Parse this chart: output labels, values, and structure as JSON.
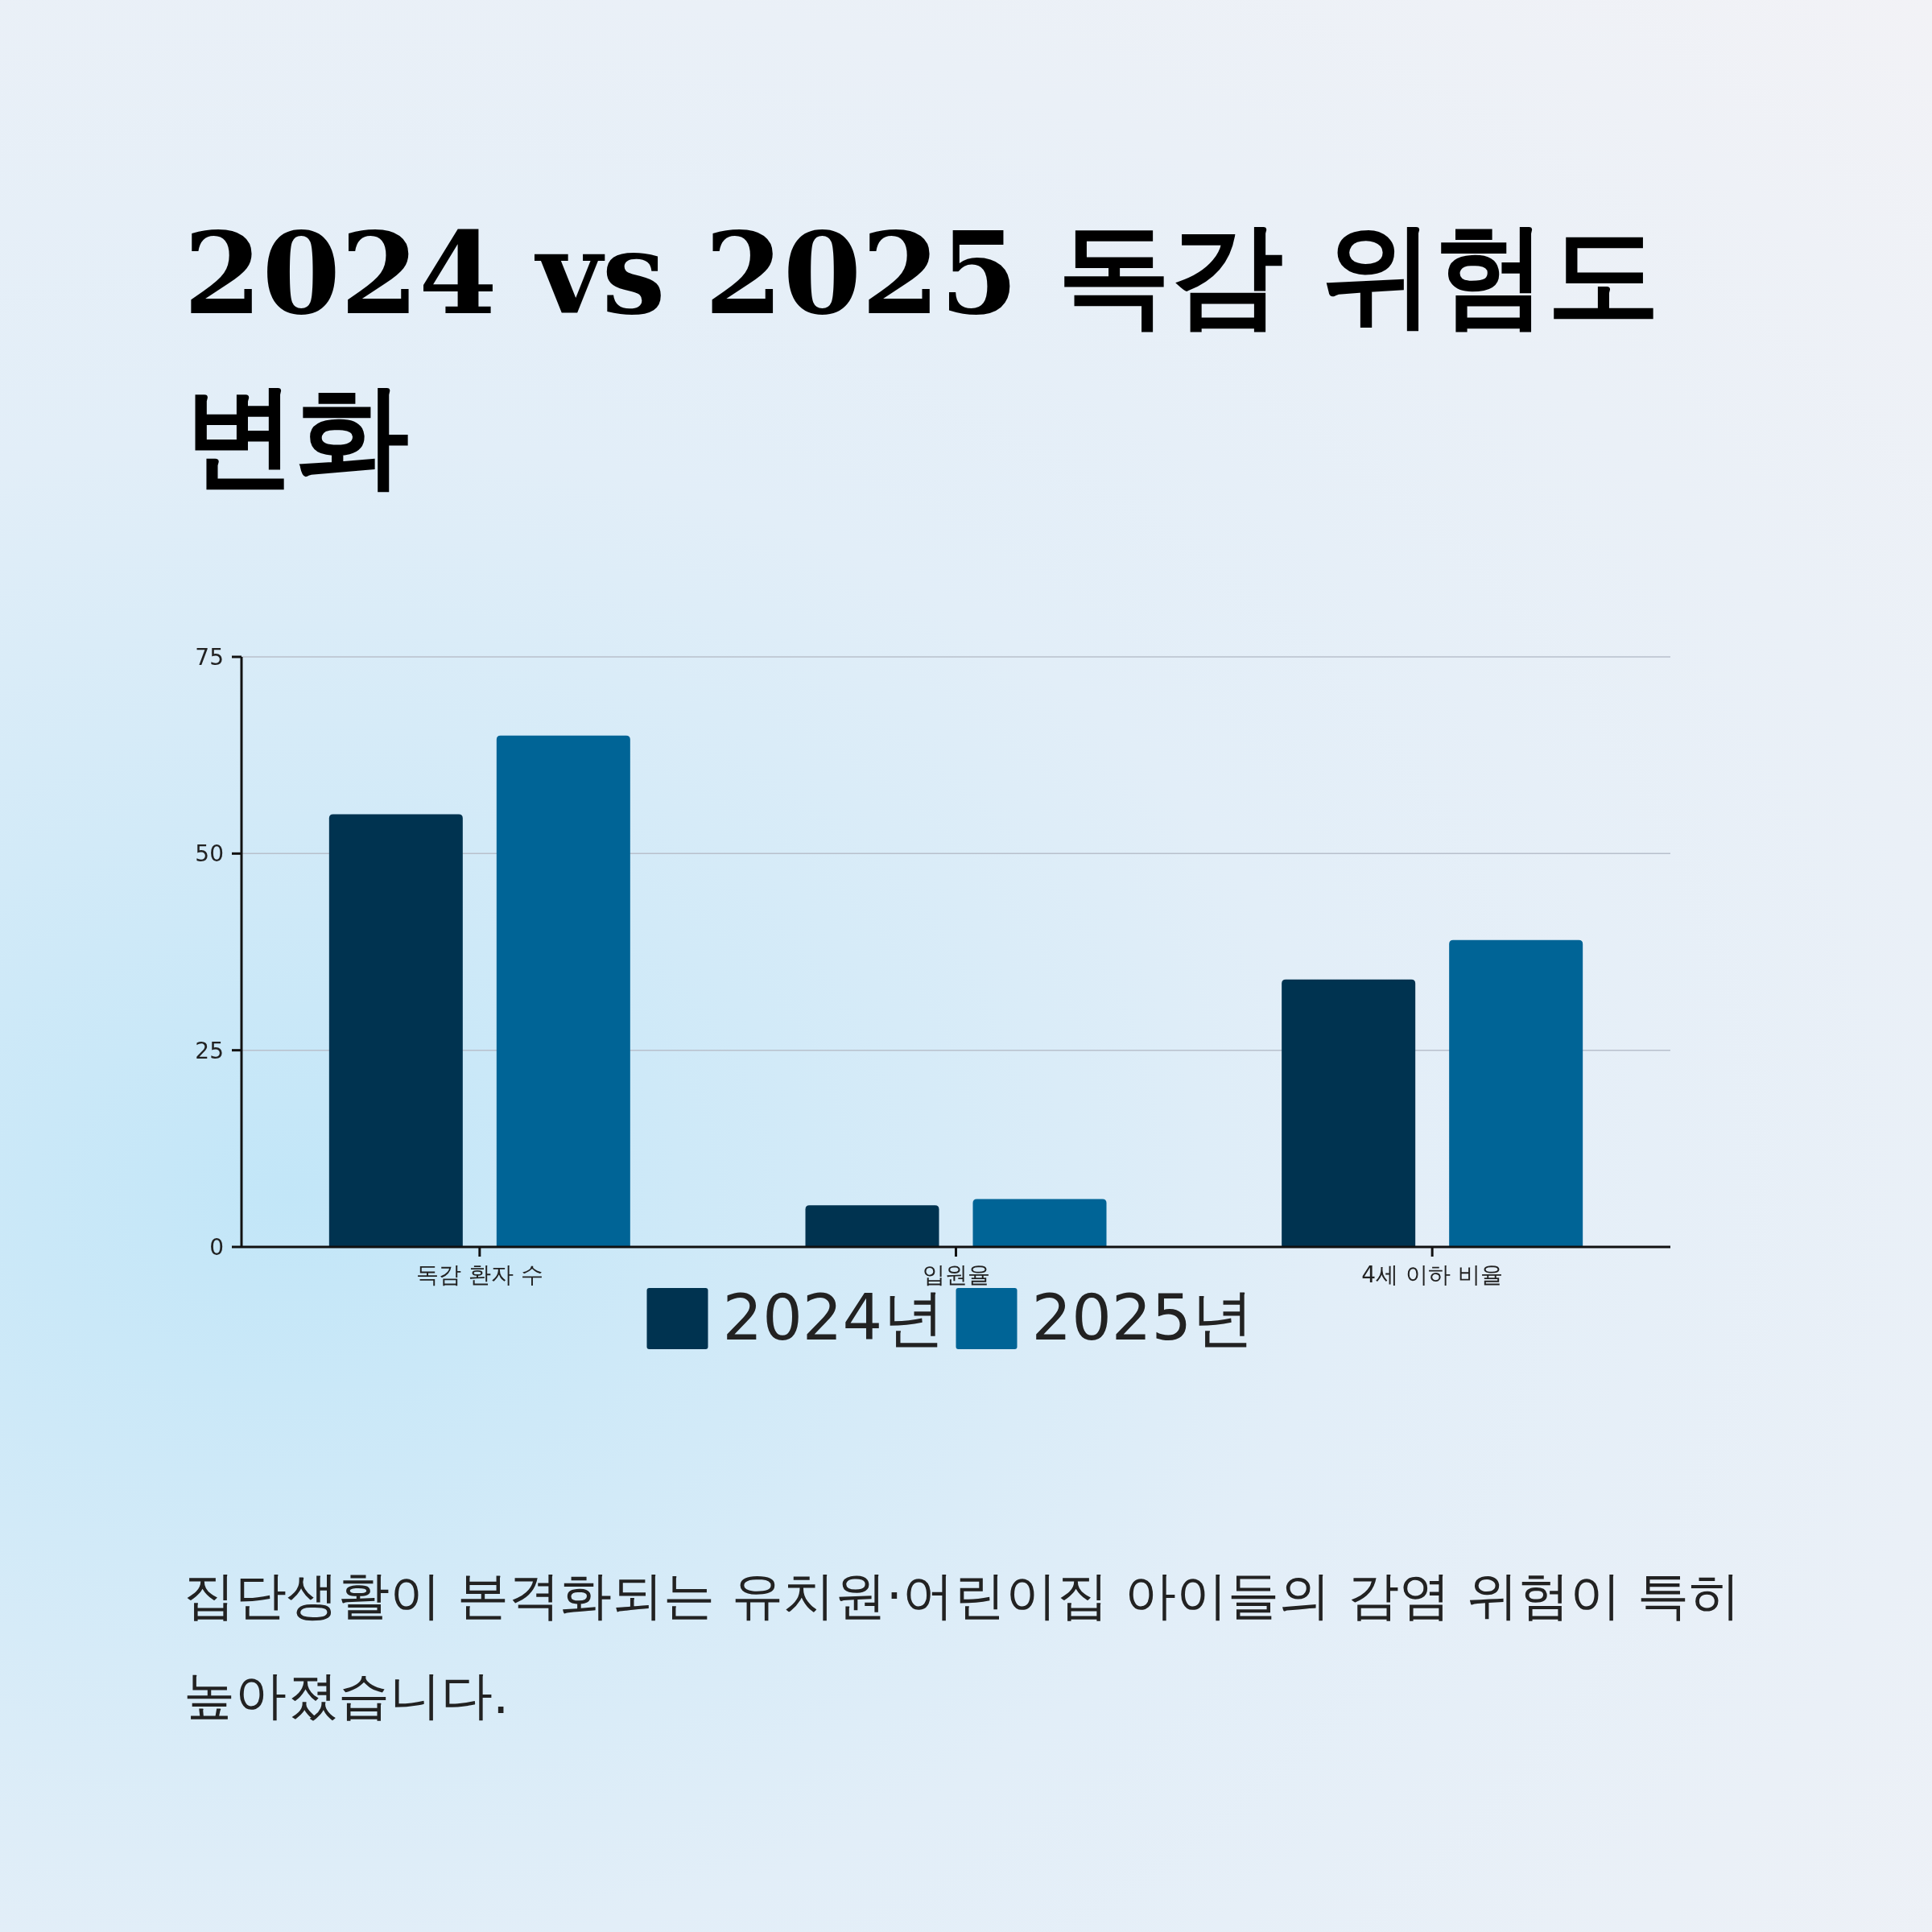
{
  "chart_data": {
    "type": "bar",
    "title": "2024 vs 2025 독감 위험도 변화",
    "categories": [
      "독감 환자 수",
      "입원율",
      "4세 이하 비율"
    ],
    "series": [
      {
        "name": "2024년",
        "color": "#003350",
        "values": [
          55,
          5.3,
          34
        ]
      },
      {
        "name": "2025년",
        "color": "#006496",
        "values": [
          65,
          6.1,
          39
        ]
      }
    ],
    "ylim": [
      0,
      75
    ],
    "yticks": [
      0,
      25,
      50,
      75
    ],
    "grid": "y",
    "legend": "bottom",
    "annotations": [
      "집단생활이 본격화되는 유치원·어린이집 아이들의 감염 위험이 특히 높아졌습니다."
    ]
  }
}
